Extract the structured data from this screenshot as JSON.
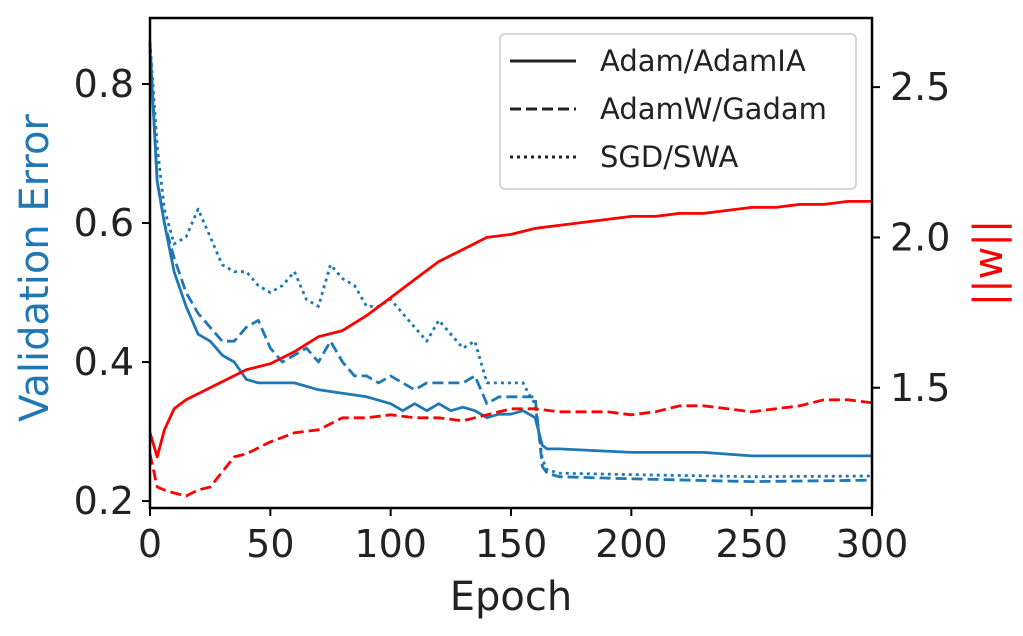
{
  "chart_data": {
    "type": "line",
    "title": "",
    "xlabel": "Epoch",
    "ylabel": "Validation Error",
    "y2label": "||w||",
    "xlim": [
      0,
      300
    ],
    "ylim": [
      0.19,
      0.895
    ],
    "y2lim": [
      1.1,
      2.73
    ],
    "xticks": [
      0,
      50,
      100,
      150,
      200,
      250,
      300
    ],
    "yticks": [
      0.2,
      0.4,
      0.6,
      0.8
    ],
    "y2ticks": [
      1.5,
      2.0,
      2.5
    ],
    "xtick_labels": [
      "0",
      "50",
      "100",
      "150",
      "200",
      "250",
      "300"
    ],
    "ytick_labels": [
      "0.2",
      "0.4",
      "0.6",
      "0.8"
    ],
    "y2tick_labels": [
      "1.5",
      "2.0",
      "2.5"
    ],
    "grid": false,
    "legend": {
      "position": "top-right",
      "entries": [
        {
          "label": "Adam/AdamIA",
          "style": "solid"
        },
        {
          "label": "AdamW/Gadam",
          "style": "dashed"
        },
        {
          "label": "SGD/SWA",
          "style": "dotted"
        }
      ]
    },
    "colors": {
      "error": "#1f77b4",
      "norm": "#ff0000",
      "axis": "#000000"
    },
    "series": [
      {
        "legend_index": 0,
        "axis": "left",
        "color": "#1f77b4",
        "x": [
          0,
          3,
          6,
          10,
          15,
          20,
          25,
          30,
          35,
          40,
          45,
          50,
          60,
          70,
          80,
          90,
          100,
          105,
          110,
          115,
          120,
          125,
          130,
          135,
          140,
          145,
          150,
          155,
          160,
          163,
          165,
          170,
          200,
          230,
          250,
          280,
          300
        ],
        "y": [
          0.85,
          0.66,
          0.6,
          0.53,
          0.48,
          0.44,
          0.43,
          0.41,
          0.4,
          0.375,
          0.37,
          0.37,
          0.37,
          0.36,
          0.355,
          0.35,
          0.34,
          0.33,
          0.34,
          0.33,
          0.34,
          0.33,
          0.335,
          0.33,
          0.32,
          0.325,
          0.325,
          0.33,
          0.32,
          0.28,
          0.275,
          0.275,
          0.27,
          0.27,
          0.265,
          0.265,
          0.265
        ]
      },
      {
        "legend_index": 1,
        "axis": "left",
        "color": "#1f77b4",
        "x": [
          0,
          3,
          6,
          10,
          15,
          20,
          25,
          30,
          35,
          40,
          45,
          50,
          55,
          60,
          65,
          70,
          75,
          80,
          85,
          90,
          95,
          100,
          105,
          110,
          115,
          120,
          130,
          135,
          140,
          145,
          150,
          155,
          160,
          163,
          165,
          170,
          200,
          250,
          300
        ],
        "y": [
          0.86,
          0.66,
          0.6,
          0.55,
          0.5,
          0.47,
          0.45,
          0.43,
          0.43,
          0.45,
          0.46,
          0.42,
          0.4,
          0.41,
          0.42,
          0.4,
          0.43,
          0.4,
          0.38,
          0.38,
          0.37,
          0.38,
          0.37,
          0.36,
          0.37,
          0.37,
          0.37,
          0.38,
          0.34,
          0.35,
          0.35,
          0.35,
          0.35,
          0.25,
          0.24,
          0.235,
          0.232,
          0.228,
          0.23
        ]
      },
      {
        "legend_index": 2,
        "axis": "left",
        "color": "#1f77b4",
        "x": [
          0,
          3,
          6,
          10,
          15,
          20,
          25,
          30,
          35,
          40,
          45,
          50,
          55,
          60,
          65,
          70,
          75,
          80,
          85,
          90,
          95,
          100,
          105,
          110,
          115,
          120,
          125,
          130,
          135,
          140,
          145,
          150,
          155,
          158,
          160,
          163,
          165,
          170,
          200,
          250,
          300
        ],
        "y": [
          0.86,
          0.71,
          0.62,
          0.57,
          0.58,
          0.62,
          0.58,
          0.54,
          0.53,
          0.53,
          0.51,
          0.5,
          0.51,
          0.53,
          0.49,
          0.48,
          0.54,
          0.52,
          0.51,
          0.48,
          0.48,
          0.49,
          0.47,
          0.45,
          0.43,
          0.46,
          0.44,
          0.42,
          0.43,
          0.37,
          0.37,
          0.37,
          0.37,
          0.35,
          0.34,
          0.26,
          0.245,
          0.24,
          0.238,
          0.235,
          0.236
        ]
      },
      {
        "legend_index": 0,
        "axis": "right",
        "color": "#ff0000",
        "x": [
          0,
          3,
          6,
          10,
          15,
          20,
          30,
          40,
          50,
          60,
          70,
          80,
          90,
          100,
          110,
          120,
          130,
          140,
          150,
          160,
          170,
          180,
          190,
          200,
          210,
          220,
          230,
          240,
          250,
          260,
          270,
          280,
          290,
          300
        ],
        "y": [
          1.35,
          1.27,
          1.36,
          1.43,
          1.46,
          1.48,
          1.52,
          1.56,
          1.58,
          1.62,
          1.67,
          1.69,
          1.74,
          1.8,
          1.86,
          1.92,
          1.96,
          2.0,
          2.01,
          2.03,
          2.04,
          2.05,
          2.06,
          2.07,
          2.07,
          2.08,
          2.08,
          2.09,
          2.1,
          2.1,
          2.11,
          2.11,
          2.12,
          2.12
        ]
      },
      {
        "legend_index": 1,
        "axis": "right",
        "color": "#ff0000",
        "x": [
          0,
          3,
          6,
          10,
          15,
          20,
          25,
          30,
          35,
          40,
          50,
          60,
          70,
          80,
          90,
          100,
          110,
          120,
          130,
          140,
          150,
          160,
          170,
          180,
          190,
          200,
          210,
          220,
          230,
          240,
          250,
          260,
          270,
          280,
          290,
          300
        ],
        "y": [
          1.28,
          1.17,
          1.16,
          1.15,
          1.14,
          1.16,
          1.17,
          1.22,
          1.27,
          1.28,
          1.32,
          1.35,
          1.36,
          1.4,
          1.4,
          1.41,
          1.4,
          1.4,
          1.39,
          1.41,
          1.43,
          1.43,
          1.42,
          1.42,
          1.42,
          1.41,
          1.42,
          1.44,
          1.44,
          1.43,
          1.42,
          1.43,
          1.44,
          1.46,
          1.46,
          1.45
        ]
      }
    ]
  }
}
